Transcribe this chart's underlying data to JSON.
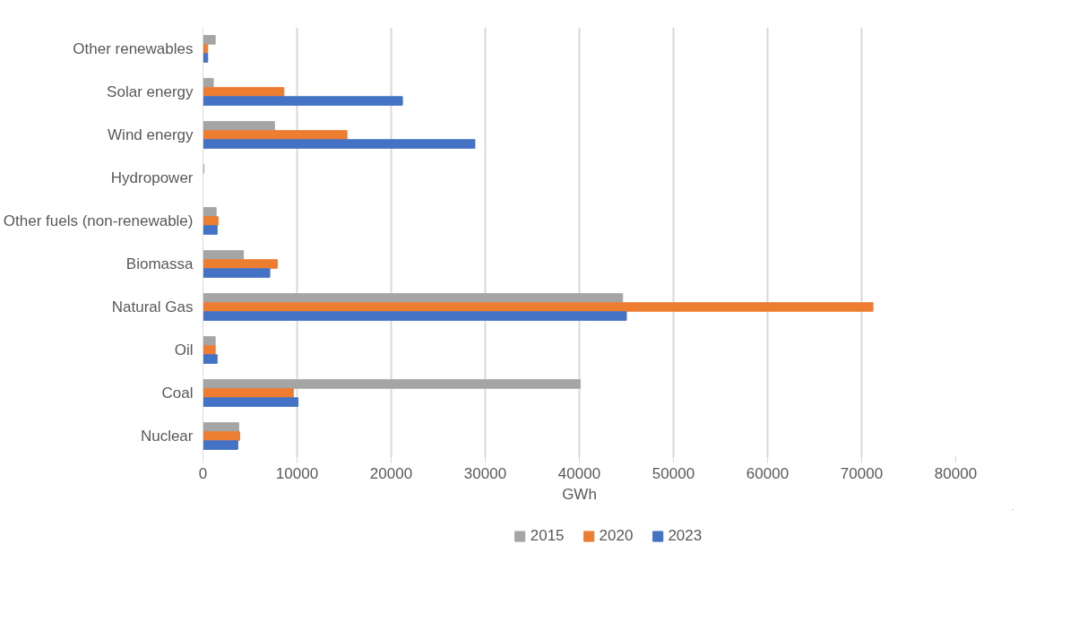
{
  "chart_data": {
    "type": "bar",
    "orientation": "horizontal",
    "xlabel": "GWh",
    "categories": [
      "Other renewables",
      "Solar energy",
      "Wind energy",
      "Hydropower",
      "Other fuels (non-renewable)",
      "Biomassa",
      "Natural Gas",
      "Oil",
      "Coal",
      "Nuclear"
    ],
    "series": [
      {
        "name": "2015",
        "color": "#a5a5a5",
        "values": [
          1300,
          1100,
          7600,
          100,
          1400,
          4300,
          44600,
          1300,
          40100,
          3800
        ]
      },
      {
        "name": "2020",
        "color": "#ed7d31",
        "values": [
          500,
          8600,
          15300,
          0,
          1600,
          7900,
          71200,
          1300,
          9600,
          3900
        ]
      },
      {
        "name": "2023",
        "color": "#4472c4",
        "values": [
          500,
          21200,
          28900,
          0,
          1500,
          7100,
          45000,
          1500,
          10100,
          3700
        ]
      }
    ],
    "xlim": [
      0,
      80000
    ],
    "xticks": [
      0,
      10000,
      20000,
      30000,
      40000,
      50000,
      60000,
      70000,
      80000
    ],
    "grid": "x",
    "legend": "bottom"
  }
}
